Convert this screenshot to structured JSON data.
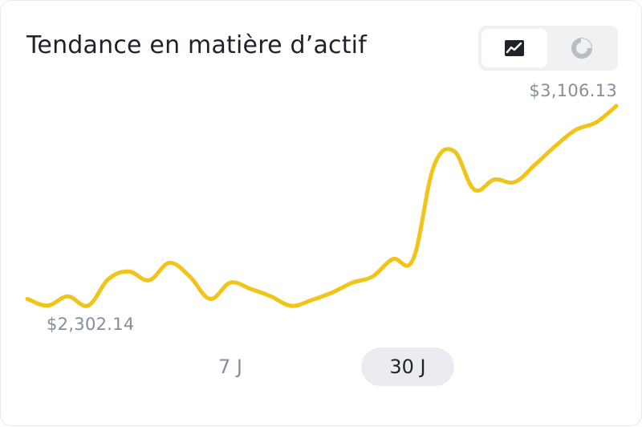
{
  "header": {
    "title": "Tendance en matière d’actif"
  },
  "view_toggle": {
    "options": [
      {
        "id": "line",
        "icon": "line-chart-icon",
        "active": true
      },
      {
        "id": "pie",
        "icon": "pie-chart-icon",
        "active": false
      }
    ]
  },
  "labels": {
    "max": "$3,106.13",
    "min": "$2,302.14"
  },
  "range_tabs": {
    "items": [
      {
        "label": "7 J",
        "active": false
      },
      {
        "label": "30 J",
        "active": true
      }
    ]
  },
  "colors": {
    "line": "#f0c419",
    "text_primary": "#1e2329",
    "text_secondary": "#848e9c"
  },
  "chart_data": {
    "type": "line",
    "title": "",
    "xlabel": "",
    "ylabel": "",
    "ylim": [
      2302.14,
      3106.13
    ],
    "grid": false,
    "legend": "none",
    "series": [
      {
        "values": [
          2330,
          2303,
          2340,
          2303,
          2410,
          2440,
          2405,
          2475,
          2420,
          2330,
          2395,
          2370,
          2340,
          2302.14,
          2325,
          2355,
          2395,
          2420,
          2490,
          2490,
          2860,
          2925,
          2770,
          2810,
          2800,
          2870,
          2945,
          3010,
          3040,
          3106.13
        ]
      }
    ]
  }
}
